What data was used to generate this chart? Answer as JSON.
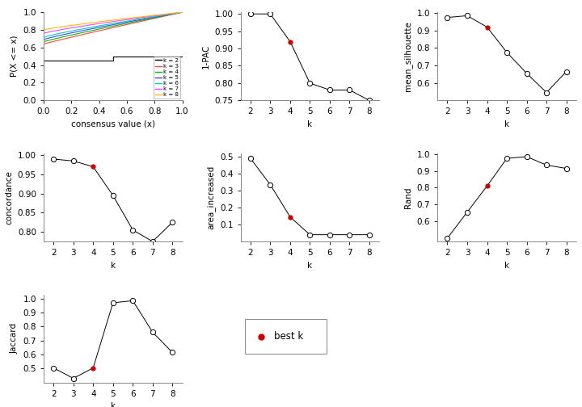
{
  "ecdf_colors": [
    "#000000",
    "#FF4444",
    "#00BB00",
    "#4444FF",
    "#00CCCC",
    "#FF44FF",
    "#FFBB00"
  ],
  "one_pac": {
    "k": [
      2,
      3,
      4,
      5,
      6,
      7,
      8
    ],
    "v": [
      1.0,
      1.0,
      0.92,
      0.8,
      0.78,
      0.78,
      0.75
    ],
    "best_k": 4,
    "ylim": [
      0.75,
      1.005
    ],
    "yticks": [
      0.75,
      0.8,
      0.85,
      0.9,
      0.95,
      1.0
    ]
  },
  "mean_sil": {
    "k": [
      2,
      3,
      4,
      5,
      6,
      7,
      8
    ],
    "v": [
      0.975,
      0.985,
      0.92,
      0.775,
      0.655,
      0.545,
      0.665
    ],
    "best_k": 4,
    "ylim": [
      0.5,
      1.005
    ],
    "yticks": [
      0.6,
      0.7,
      0.8,
      0.9,
      1.0
    ]
  },
  "concordance": {
    "k": [
      2,
      3,
      4,
      5,
      6,
      7,
      8
    ],
    "v": [
      0.99,
      0.985,
      0.97,
      0.895,
      0.805,
      0.775,
      0.825
    ],
    "best_k": 4,
    "ylim": [
      0.775,
      1.005
    ],
    "yticks": [
      0.8,
      0.85,
      0.9,
      0.95,
      1.0
    ]
  },
  "area_increased": {
    "k": [
      2,
      3,
      4,
      5,
      6,
      7,
      8
    ],
    "v": [
      0.49,
      0.335,
      0.145,
      0.04,
      0.04,
      0.04,
      0.04
    ],
    "best_k": 4,
    "ylim": [
      0.0,
      0.52
    ],
    "yticks": [
      0.1,
      0.2,
      0.3,
      0.4,
      0.5
    ]
  },
  "rand": {
    "k": [
      2,
      3,
      4,
      5,
      6,
      7,
      8
    ],
    "v": [
      0.5,
      0.655,
      0.81,
      0.975,
      0.985,
      0.935,
      0.915
    ],
    "best_k": 4,
    "ylim": [
      0.48,
      1.005
    ],
    "yticks": [
      0.6,
      0.7,
      0.8,
      0.9,
      1.0
    ]
  },
  "jaccard": {
    "k": [
      2,
      3,
      4,
      5,
      6,
      7,
      8
    ],
    "v": [
      0.505,
      0.43,
      0.505,
      0.97,
      0.985,
      0.76,
      0.615
    ],
    "best_k": 4,
    "ylim": [
      0.4,
      1.03
    ],
    "yticks": [
      0.5,
      0.6,
      0.7,
      0.8,
      0.9,
      1.0
    ]
  },
  "bg_color": "#FFFFFF",
  "line_color": "#000000",
  "open_dot_facecolor": "#FFFFFF",
  "best_dot_color": "#CC0000",
  "font_size": 7.5,
  "label_fontsize": 8.5
}
